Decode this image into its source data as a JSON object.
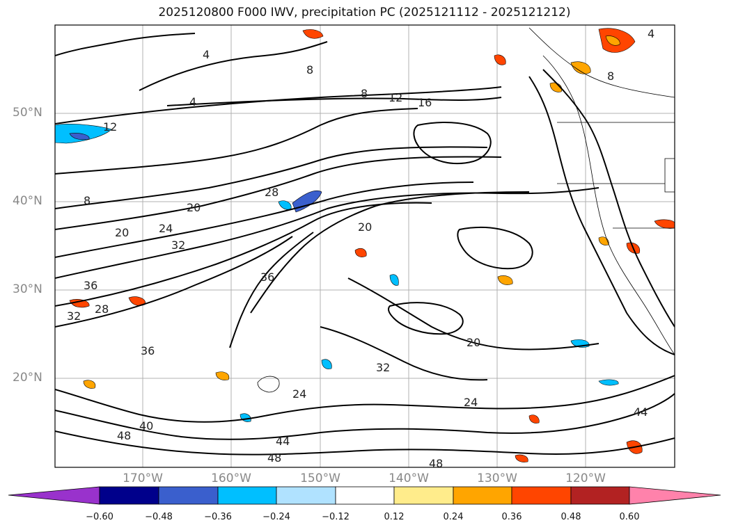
{
  "title": "2025120800 F000 IWV, precipitation PC (2025121112 - 2025121212)",
  "lat_labels": [
    "50°N",
    "40°N",
    "30°N",
    "20°N"
  ],
  "lon_labels": [
    "170°W",
    "160°W",
    "150°W",
    "140°W",
    "130°W",
    "120°W"
  ],
  "contour_labels": [
    "4",
    "8",
    "12",
    "16",
    "20",
    "24",
    "28",
    "32",
    "36",
    "40",
    "44",
    "48"
  ],
  "colorbar": {
    "ticks": [
      "−0.60",
      "−0.48",
      "−0.36",
      "−0.24",
      "−0.12",
      "0.12",
      "0.24",
      "0.36",
      "0.48",
      "0.60"
    ],
    "colors": [
      "#9932cc",
      "#00008b",
      "#3a5fcd",
      "#00bfff",
      "#b0e2ff",
      "#ffffff",
      "#ffec8b",
      "#ffa500",
      "#ff4500",
      "#b22222",
      "#ff82ab"
    ]
  }
}
